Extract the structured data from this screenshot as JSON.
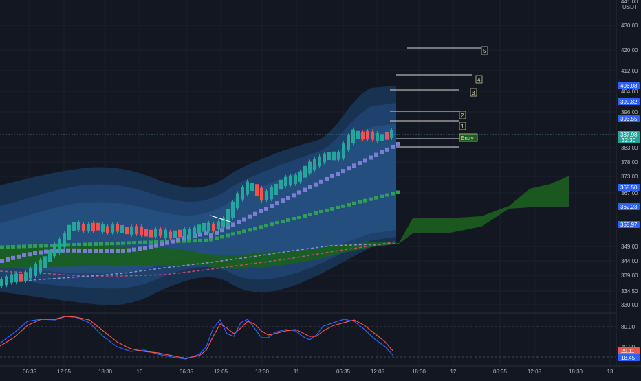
{
  "price_axis": {
    "currency": "USDT",
    "top_partial": "441.00",
    "ticks": [
      "430.00",
      "420.00",
      "412.00",
      "404.00",
      "396.00",
      "383.00",
      "378.00",
      "373.00",
      "367.00",
      "349.00",
      "344.00",
      "339.00",
      "334.50",
      "330.00"
    ]
  },
  "price_tags": [
    {
      "label": "406.08",
      "color": "#2962ff"
    },
    {
      "label": "399.82",
      "color": "#2962ff"
    },
    {
      "label": "393.55",
      "color": "#2962ff"
    },
    {
      "label": "387.98",
      "sub": "32:30",
      "color": "#26a69a"
    },
    {
      "label": "368.50",
      "color": "#2962ff"
    },
    {
      "label": "362.23",
      "color": "#2962ff"
    },
    {
      "label": "355.97",
      "color": "#2962ff"
    }
  ],
  "targets": [
    {
      "label": "5"
    },
    {
      "label": "4"
    },
    {
      "label": "3"
    },
    {
      "label": "2"
    },
    {
      "label": "1"
    },
    {
      "label": "Entry"
    }
  ],
  "indicator": {
    "ticks": [
      "80.00",
      "40.00"
    ],
    "tags": [
      {
        "label": "29.11",
        "color": "#ef5350"
      },
      {
        "label": "18.45",
        "color": "#2962ff"
      }
    ]
  },
  "time_axis": {
    "labels": [
      "06:35",
      "12:05",
      "18:30",
      "10",
      "06:35",
      "12:05",
      "18:30",
      "11",
      "06:35",
      "12:05",
      "18:30",
      "12",
      "06:35",
      "12:05",
      "18:30",
      "13"
    ]
  },
  "colors": {
    "bull": "#26a69a",
    "bear": "#ef5350",
    "cloud": "#1b5e20",
    "band": "#1e3a5f",
    "ma_fast": "#7b7fd4",
    "ma_slow": "#2e9e5a"
  }
}
